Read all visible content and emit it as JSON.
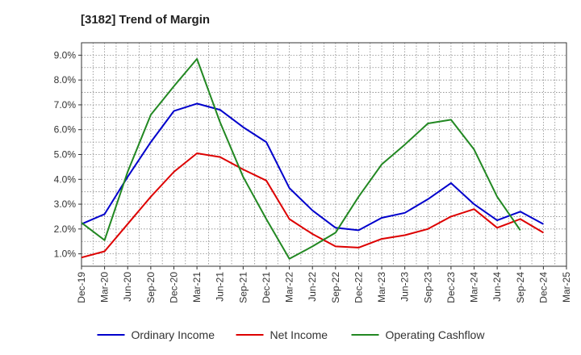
{
  "chart_data": {
    "type": "line",
    "title": "[3182]  Trend of Margin",
    "xlabel": "",
    "ylabel": "",
    "categories": [
      "Dec-19",
      "Mar-20",
      "Jun-20",
      "Sep-20",
      "Dec-20",
      "Mar-21",
      "Jun-21",
      "Sep-21",
      "Dec-21",
      "Mar-22",
      "Jun-22",
      "Sep-22",
      "Dec-22",
      "Mar-23",
      "Jun-23",
      "Sep-23",
      "Dec-23",
      "Mar-24",
      "Jun-24",
      "Sep-24",
      "Dec-24",
      "Mar-25"
    ],
    "ylim": [
      0.5,
      9.5
    ],
    "yticks": [
      1.0,
      2.0,
      3.0,
      4.0,
      5.0,
      6.0,
      7.0,
      8.0,
      9.0
    ],
    "ytick_labels": [
      "1.0%",
      "2.0%",
      "3.0%",
      "4.0%",
      "5.0%",
      "6.0%",
      "7.0%",
      "8.0%",
      "9.0%"
    ],
    "grid": true,
    "legend_position": "bottom",
    "series": [
      {
        "name": "Ordinary Income",
        "color": "#0000cc",
        "values": [
          2.2,
          2.6,
          4.1,
          5.5,
          6.75,
          7.05,
          6.8,
          6.1,
          5.5,
          3.65,
          2.75,
          2.05,
          1.95,
          2.45,
          2.65,
          3.2,
          3.85,
          3.0,
          2.35,
          2.7,
          2.2,
          null
        ]
      },
      {
        "name": "Net Income",
        "color": "#dd0000",
        "values": [
          0.85,
          1.1,
          2.2,
          3.3,
          4.3,
          5.05,
          4.9,
          4.4,
          3.95,
          2.4,
          1.8,
          1.3,
          1.25,
          1.6,
          1.75,
          2.0,
          2.5,
          2.8,
          2.05,
          2.4,
          1.85,
          null
        ]
      },
      {
        "name": "Operating Cashflow",
        "color": "#228822",
        "values": [
          2.25,
          1.55,
          4.3,
          6.6,
          7.75,
          8.85,
          6.3,
          4.1,
          2.4,
          0.8,
          1.3,
          1.85,
          3.3,
          4.6,
          5.4,
          6.25,
          6.4,
          5.2,
          3.3,
          1.95,
          null,
          null
        ]
      }
    ]
  }
}
